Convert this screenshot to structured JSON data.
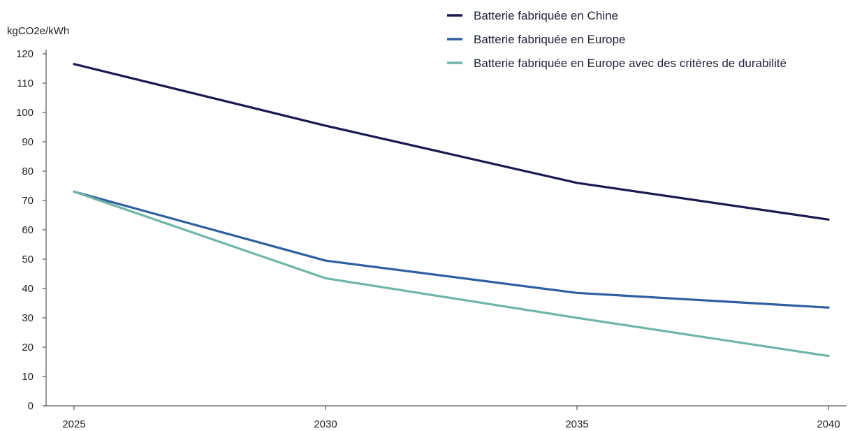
{
  "chart_data": {
    "type": "line",
    "title": "",
    "xlabel": "",
    "ylabel": "kgCO2e/kWh",
    "x": [
      "2025",
      "2030",
      "2035",
      "2040"
    ],
    "ylim": [
      0,
      120
    ],
    "yticks": [
      0,
      10,
      20,
      30,
      40,
      50,
      60,
      70,
      80,
      90,
      100,
      110,
      120
    ],
    "grid": false,
    "legend_position": "top-right",
    "series": [
      {
        "name": "Batterie fabriquée en Chine",
        "color": "#1b1a4f",
        "values": [
          116.5,
          95.5,
          76,
          63.5
        ]
      },
      {
        "name": "Batterie fabriquée en Europe",
        "color": "#2f5f9f",
        "values": [
          73,
          49.5,
          38.5,
          33.5
        ]
      },
      {
        "name": "Batterie fabriquée en Europe avec des critères de durabilité",
        "color": "#6fb6a8",
        "values": [
          73,
          43.5,
          30,
          17
        ]
      }
    ]
  }
}
